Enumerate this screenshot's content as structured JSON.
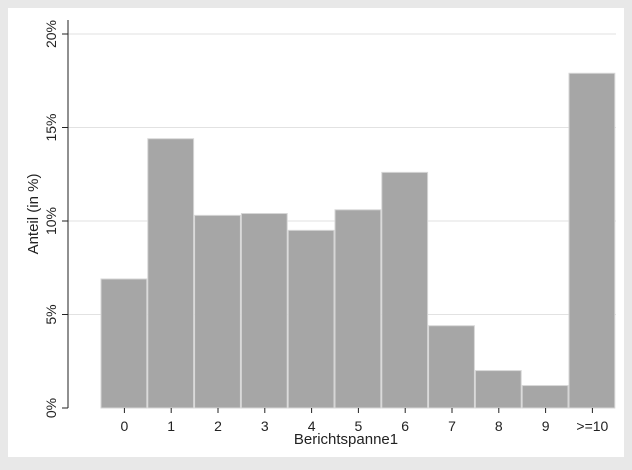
{
  "chart_data": {
    "type": "bar",
    "categories": [
      "0",
      "1",
      "2",
      "3",
      "4",
      "5",
      "6",
      "7",
      "8",
      "9",
      ">=10"
    ],
    "values": [
      6.9,
      14.4,
      10.3,
      10.4,
      9.5,
      10.6,
      12.6,
      4.4,
      2.0,
      1.2,
      17.9
    ],
    "xlabel": "Berichtspanne1",
    "ylabel": "Anteil (in  %)",
    "ylim": [
      0,
      20
    ],
    "yticks": [
      0,
      5,
      10,
      15,
      20
    ],
    "ytick_labels": [
      "0%",
      "5%",
      "10%",
      "15%",
      "20%"
    ],
    "grid": true,
    "colors": {
      "bar": "#a6a6a6",
      "plot_background": "#ffffff",
      "outer_background": "#e8e8e8"
    }
  }
}
